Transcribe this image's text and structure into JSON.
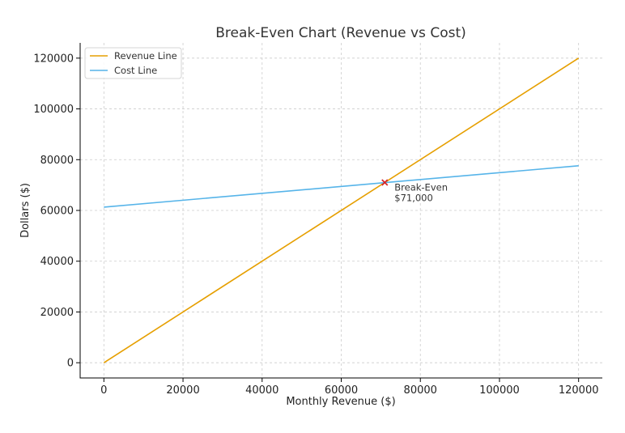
{
  "chart_data": {
    "type": "line",
    "title": "Break-Even Chart (Revenue vs Cost)",
    "xlabel": "Monthly Revenue ($)",
    "ylabel": "Dollars ($)",
    "xlim": [
      -6000,
      126000
    ],
    "ylim": [
      -6000,
      126000
    ],
    "x_ticks": [
      0,
      20000,
      40000,
      60000,
      80000,
      100000,
      120000
    ],
    "y_ticks": [
      0,
      20000,
      40000,
      60000,
      80000,
      100000,
      120000
    ],
    "grid": true,
    "legend_position": "top-left",
    "series": [
      {
        "name": "Revenue Line",
        "color": "#E69F00",
        "x": [
          0,
          120000
        ],
        "y": [
          0,
          120000
        ]
      },
      {
        "name": "Cost Line",
        "color": "#56B4E9",
        "x": [
          0,
          120000
        ],
        "y": [
          61300,
          77600
        ]
      }
    ],
    "marker": {
      "x": 71000,
      "y": 71000,
      "color": "#D62728",
      "symbol": "x"
    },
    "annotation": {
      "line1": "Break-Even",
      "line2": "$71,000"
    }
  }
}
